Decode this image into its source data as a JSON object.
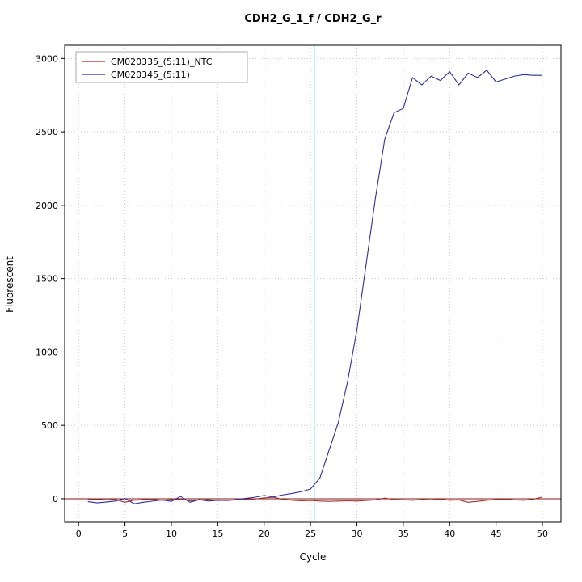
{
  "chart_data": {
    "type": "line",
    "title": "CDH2_G_1_f / CDH2_G_r",
    "xlabel": "Cycle",
    "ylabel": "Fluorescent",
    "xlim": [
      -1.5,
      52
    ],
    "ylim": [
      -160,
      3090
    ],
    "xticks": [
      0,
      5,
      10,
      15,
      20,
      25,
      30,
      35,
      40,
      45,
      50
    ],
    "yticks": [
      0,
      500,
      1000,
      1500,
      2000,
      2500,
      3000
    ],
    "grid": "dotted",
    "grid_color": "#c8c8c8",
    "legend_position": "top-left",
    "threshold_cycle_line": {
      "axis": "x",
      "value": 25.4,
      "color": "#6fe8ee"
    },
    "baseline": {
      "axis": "y",
      "value": 0,
      "color": "#8b1a1a"
    },
    "x": [
      1,
      2,
      3,
      4,
      5,
      6,
      7,
      8,
      9,
      10,
      11,
      12,
      13,
      14,
      15,
      16,
      17,
      18,
      19,
      20,
      21,
      22,
      23,
      24,
      25,
      26,
      27,
      28,
      29,
      30,
      31,
      32,
      33,
      34,
      35,
      36,
      37,
      38,
      39,
      40,
      41,
      42,
      43,
      44,
      45,
      46,
      47,
      48,
      49,
      50
    ],
    "series": [
      {
        "name": "CM020335_(5:11)_NTC",
        "color": "#a03232",
        "values": [
          -6,
          -4,
          -8,
          -5,
          -24,
          -10,
          -6,
          -4,
          -10,
          -6,
          -3,
          -14,
          -8,
          -6,
          -12,
          -10,
          -8,
          -4,
          -2,
          6,
          10,
          -4,
          -10,
          -14,
          -12,
          -16,
          -18,
          -16,
          -14,
          -16,
          -12,
          -8,
          4,
          -6,
          -8,
          -10,
          -6,
          -8,
          -4,
          -10,
          -8,
          -24,
          -18,
          -10,
          -6,
          -4,
          -8,
          -10,
          -4,
          12
        ]
      },
      {
        "name": "CM020345_(5:11)",
        "color": "#2e2e99",
        "values": [
          -20,
          -28,
          -22,
          -16,
          2,
          -34,
          -24,
          -16,
          -8,
          -18,
          16,
          -24,
          -6,
          -16,
          -10,
          -12,
          -6,
          2,
          10,
          22,
          12,
          26,
          36,
          48,
          66,
          140,
          330,
          520,
          800,
          1150,
          1600,
          2050,
          2450,
          2630,
          2660,
          2870,
          2820,
          2880,
          2850,
          2910,
          2820,
          2900,
          2870,
          2920,
          2840,
          2860,
          2880,
          2890,
          2885,
          2885
        ]
      }
    ]
  }
}
